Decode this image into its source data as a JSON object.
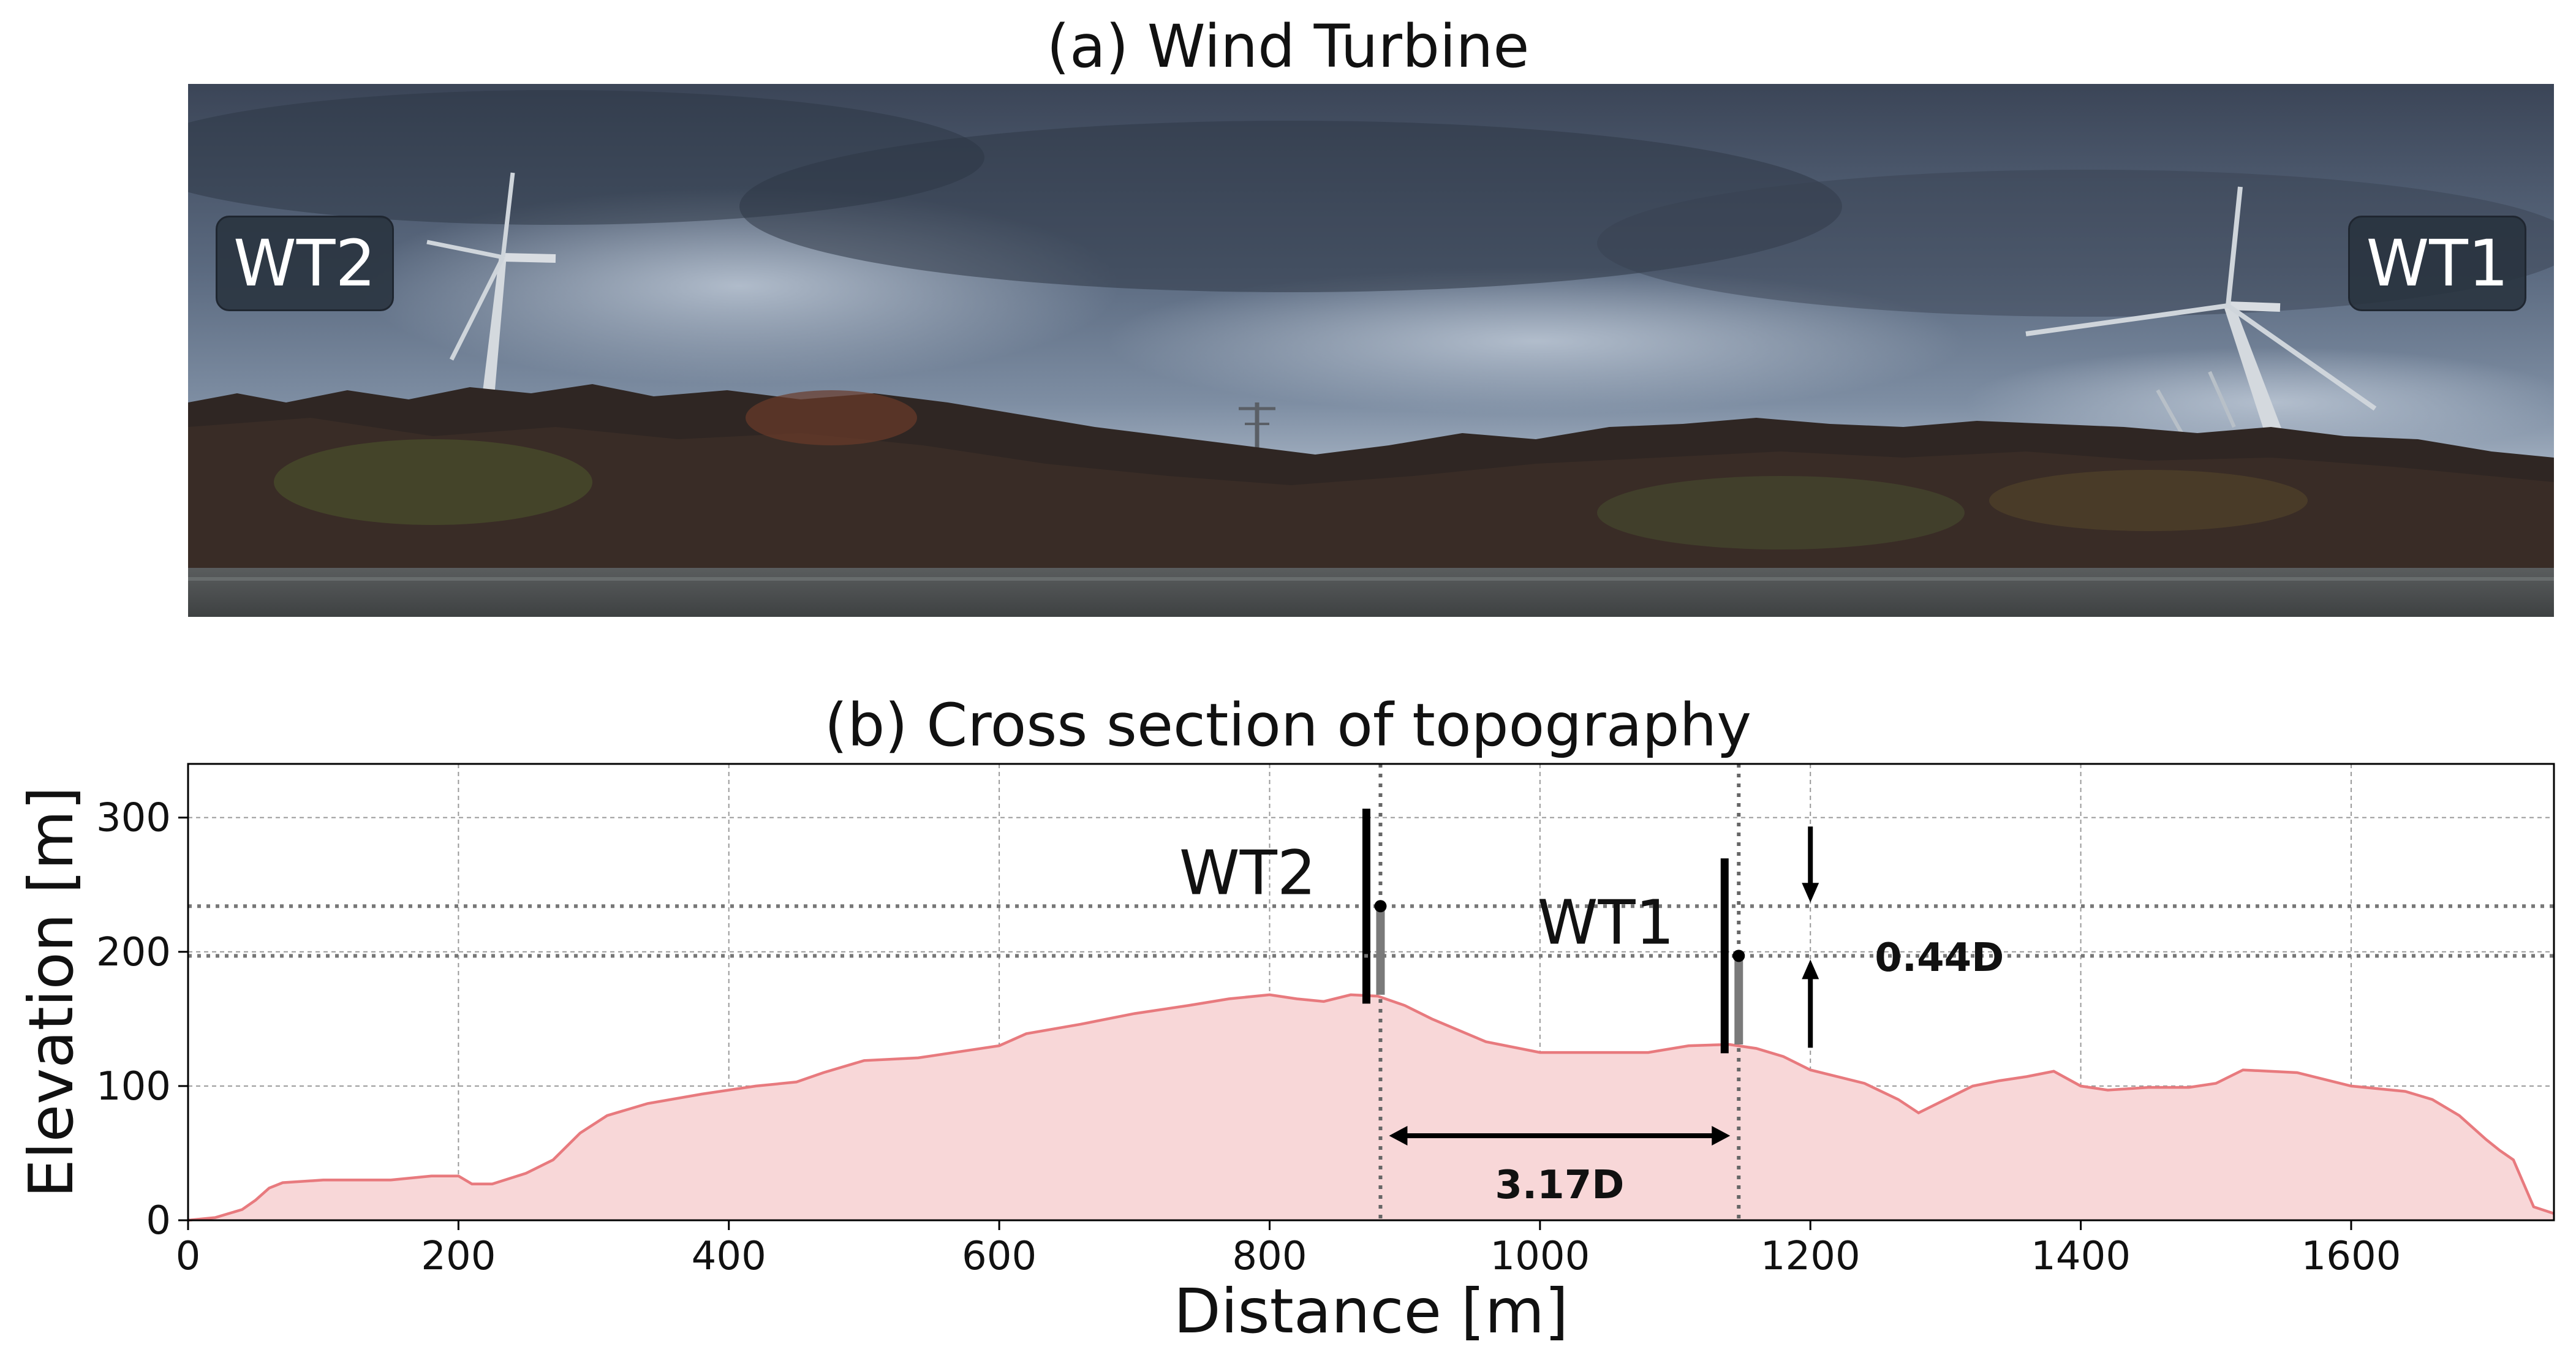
{
  "panel_a": {
    "title": "(a) Wind Turbine",
    "labels": {
      "wt2": "WT2",
      "wt1": "WT1"
    }
  },
  "chart_data": {
    "type": "area",
    "title": "(b) Cross section of topography",
    "xlabel": "Distance [m]",
    "ylabel": "Elevation [m]",
    "xlim": [
      0,
      1750
    ],
    "ylim": [
      0,
      340
    ],
    "xticks": [
      0,
      200,
      400,
      600,
      800,
      1000,
      1200,
      1400,
      1600
    ],
    "yticks": [
      0,
      100,
      200,
      300
    ],
    "grid": true,
    "fill_color": "#f8d7d8",
    "line_color": "#e87a7e",
    "series": [
      {
        "x": [
          0,
          20,
          40,
          50,
          60,
          70,
          100,
          150,
          180,
          200,
          210,
          225,
          250,
          270,
          290,
          310,
          340,
          380,
          420,
          450,
          470,
          500,
          540,
          580,
          600,
          620,
          660,
          700,
          740,
          770,
          800,
          820,
          840,
          860,
          880,
          900,
          920,
          960,
          1000,
          1040,
          1080,
          1110,
          1140,
          1160,
          1180,
          1200,
          1240,
          1265,
          1280,
          1300,
          1320,
          1340,
          1360,
          1380,
          1400,
          1420,
          1450,
          1480,
          1500,
          1520,
          1560,
          1600,
          1640,
          1660,
          1680,
          1700,
          1710,
          1720,
          1735,
          1750
        ],
        "y": [
          0,
          2,
          8,
          15,
          24,
          28,
          30,
          30,
          33,
          33,
          27,
          27,
          35,
          45,
          65,
          78,
          87,
          94,
          100,
          103,
          110,
          119,
          121,
          127,
          130,
          139,
          146,
          154,
          160,
          165,
          168,
          165,
          163,
          168,
          167,
          160,
          150,
          133,
          125,
          125,
          125,
          130,
          131,
          128,
          122,
          112,
          102,
          90,
          80,
          90,
          100,
          104,
          107,
          111,
          100,
          97,
          99,
          99,
          102,
          112,
          110,
          100,
          96,
          90,
          78,
          60,
          52,
          45,
          10,
          5
        ]
      }
    ],
    "turbines": [
      {
        "name": "WT2",
        "x": 882,
        "base": 168,
        "hub": 234
      },
      {
        "name": "WT1",
        "x": 1147,
        "base": 131,
        "hub": 197
      }
    ],
    "annotations": [
      {
        "text": "3.17D",
        "type": "horizontal-distance",
        "x": [
          882,
          1147
        ],
        "y": 63
      },
      {
        "text": "0.44D",
        "type": "vertical-offset",
        "x": 1200,
        "y": [
          197,
          234
        ]
      }
    ]
  }
}
